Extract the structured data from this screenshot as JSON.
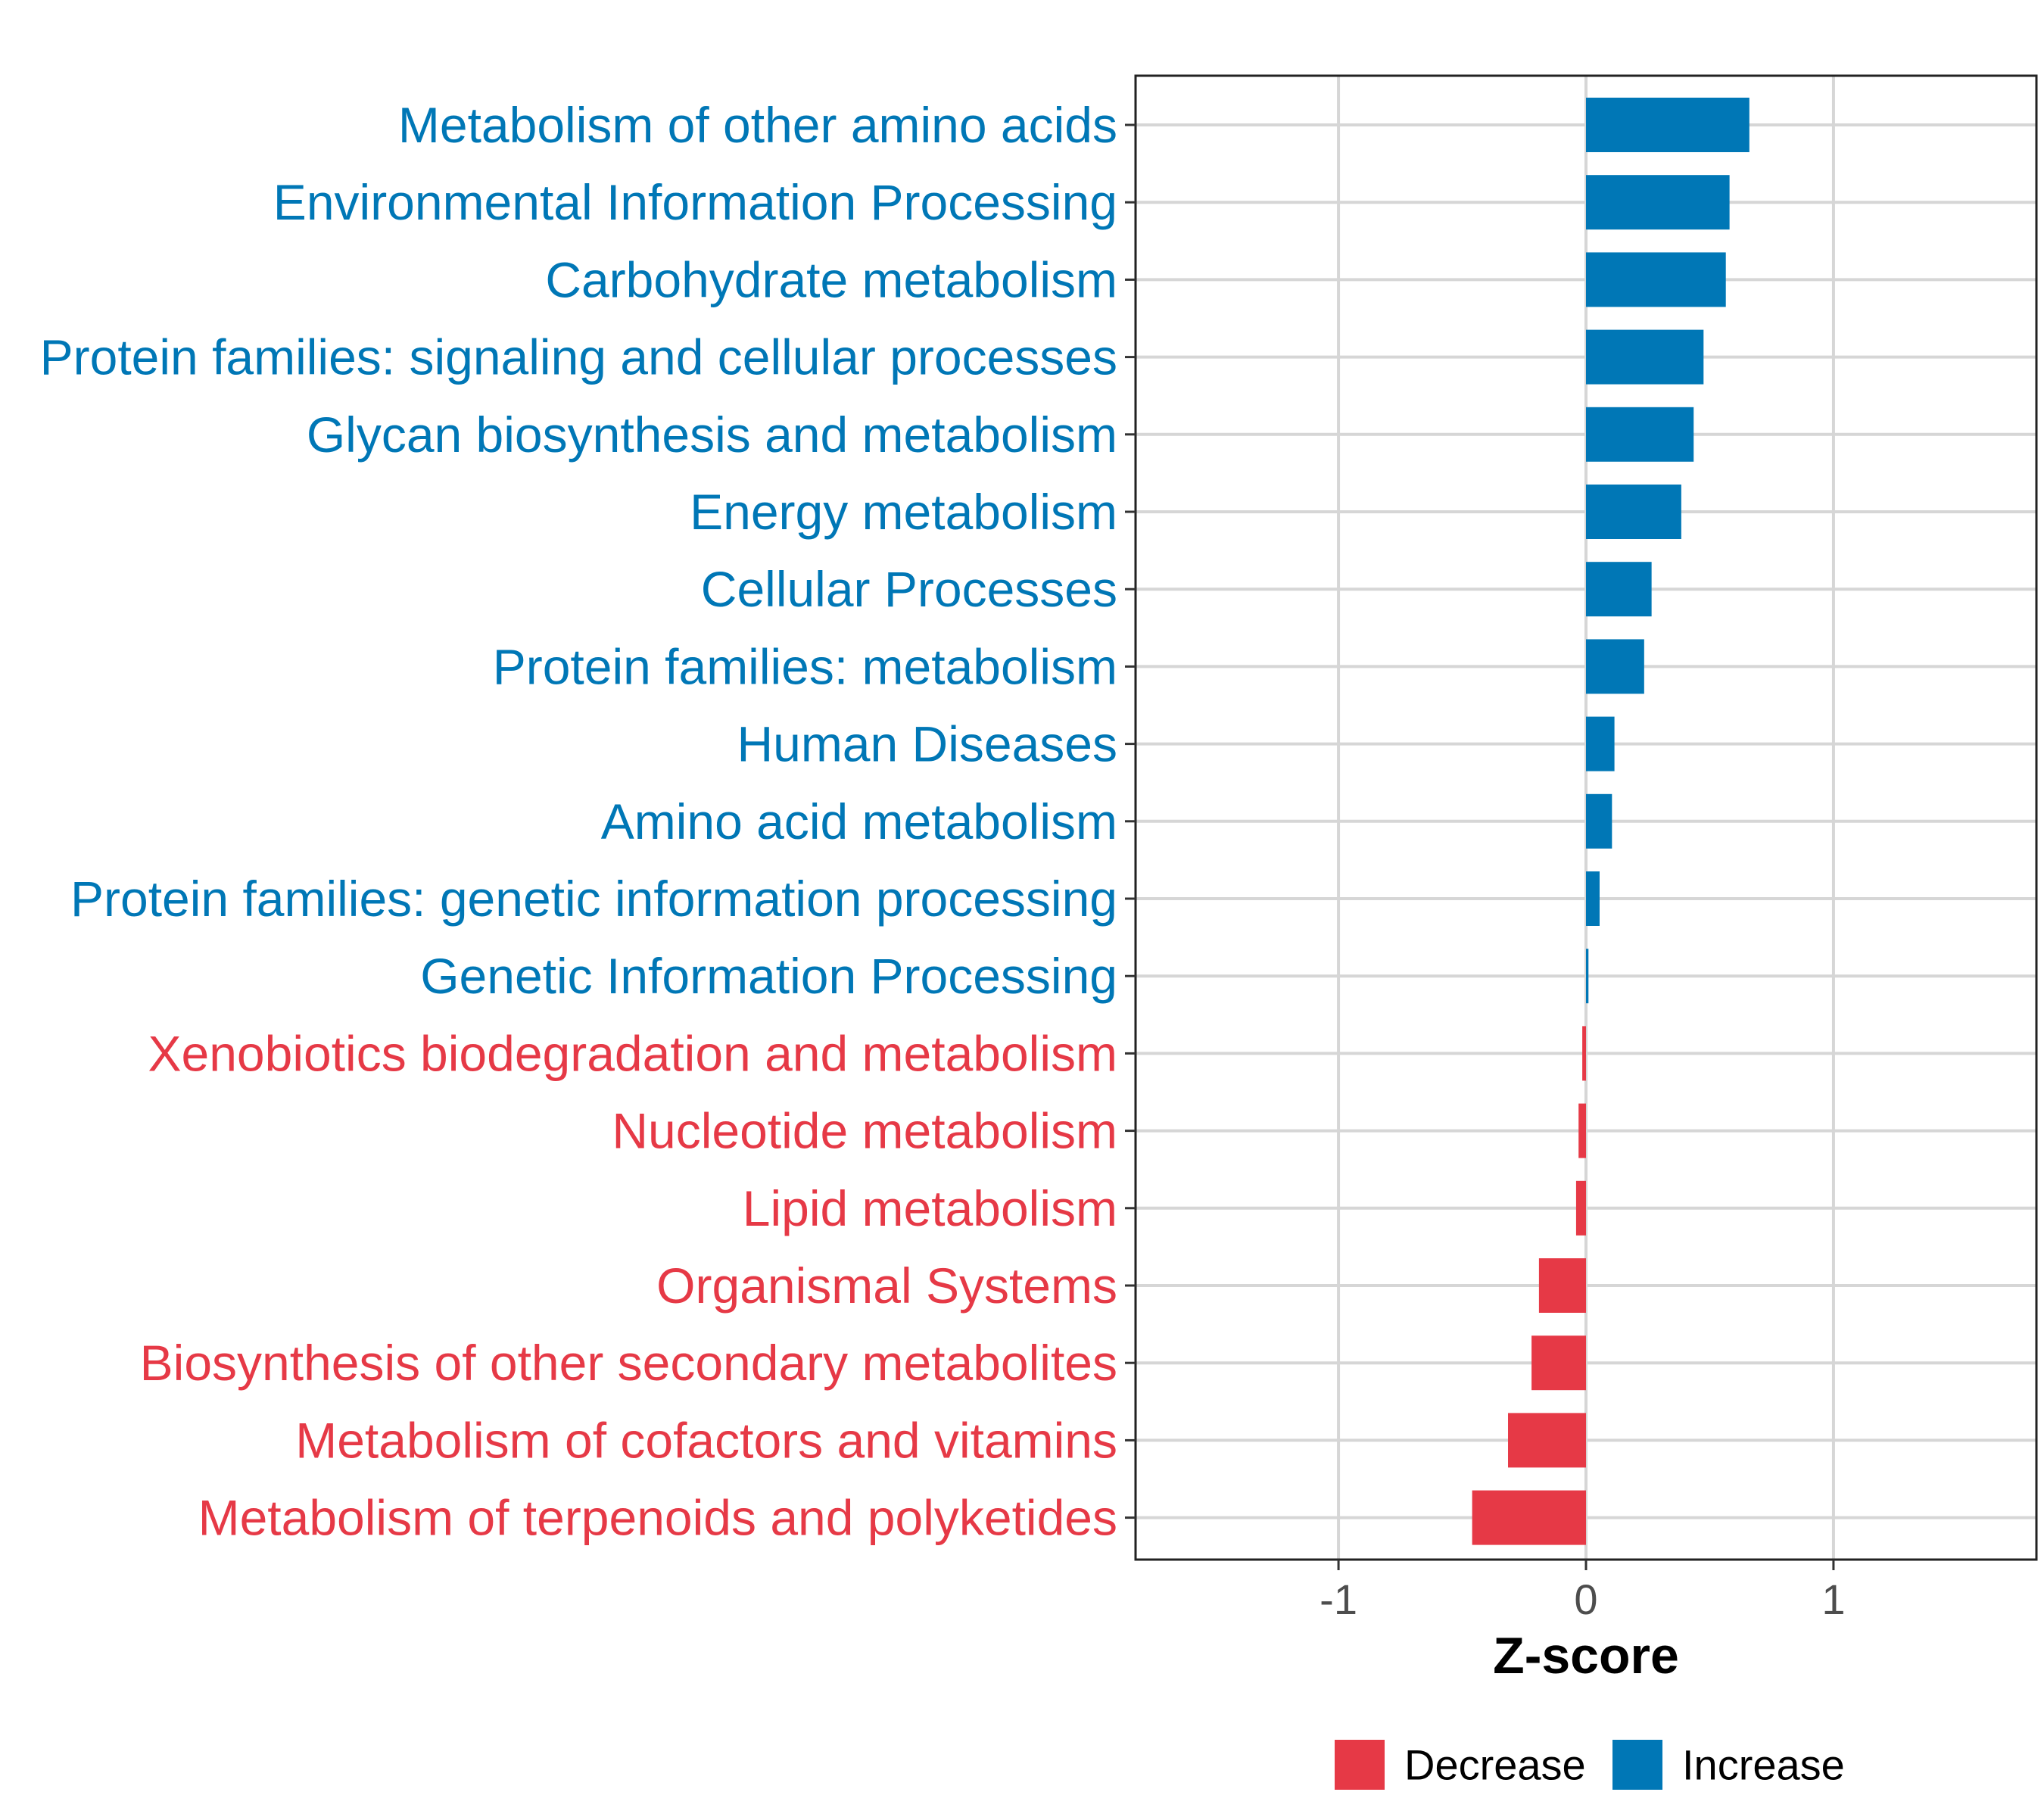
{
  "chart_data": {
    "type": "bar",
    "orientation": "horizontal",
    "title": "",
    "xlabel": "Z-score",
    "ylabel": "",
    "xlim": [
      -1.82,
      1.82
    ],
    "xticks": [
      -1,
      0,
      1
    ],
    "xtick_labels": [
      "-1",
      "0",
      "1"
    ],
    "grid": true,
    "legend_position": "bottom",
    "colors": {
      "Decrease": "#E63946",
      "Increase": "#0077B6"
    },
    "legend": [
      {
        "name": "Decrease",
        "color": "#E63946"
      },
      {
        "name": "Increase",
        "color": "#0077B6"
      }
    ],
    "categories": [
      "Metabolism of other amino acids",
      "Environmental Information Processing",
      "Carbohydrate metabolism",
      "Protein families: signaling and cellular processes",
      "Glycan biosynthesis and metabolism",
      "Energy metabolism",
      "Cellular Processes",
      "Protein families: metabolism",
      "Human Diseases",
      "Amino acid metabolism",
      "Protein families: genetic information processing",
      "Genetic Information Processing",
      "Xenobiotics biodegradation and metabolism",
      "Nucleotide metabolism",
      "Lipid metabolism",
      "Organismal Systems",
      "Biosynthesis of other secondary metabolites",
      "Metabolism of cofactors and vitamins",
      "Metabolism of terpenoids and polyketides"
    ],
    "values": [
      0.66,
      0.58,
      0.565,
      0.475,
      0.435,
      0.385,
      0.265,
      0.235,
      0.115,
      0.105,
      0.055,
      0.01,
      -0.015,
      -0.03,
      -0.04,
      -0.19,
      -0.22,
      -0.315,
      -0.46
    ],
    "groups": [
      "Increase",
      "Increase",
      "Increase",
      "Increase",
      "Increase",
      "Increase",
      "Increase",
      "Increase",
      "Increase",
      "Increase",
      "Increase",
      "Increase",
      "Decrease",
      "Decrease",
      "Decrease",
      "Decrease",
      "Decrease",
      "Decrease",
      "Decrease"
    ]
  }
}
